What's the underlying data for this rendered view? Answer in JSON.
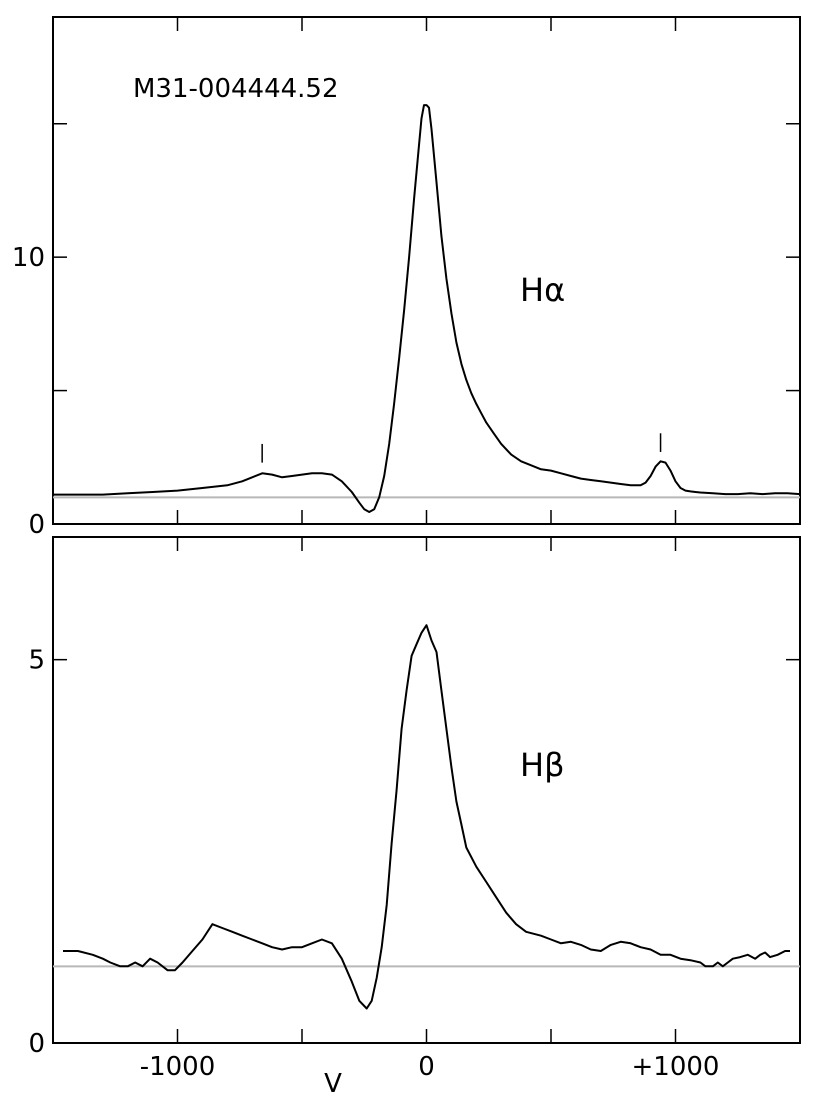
{
  "chart_data": [
    {
      "type": "line",
      "panel": "top",
      "annotation": "M31-004444.52",
      "line_label": "Hα",
      "xlim": [
        -1500,
        1500
      ],
      "ylim": [
        0,
        19
      ],
      "xticks_major": [
        -1000,
        0,
        1000
      ],
      "xticks_minor": [
        -1500,
        -500,
        500,
        1500
      ],
      "yticks_major": [
        0,
        5,
        10,
        15
      ],
      "ytick_labels": [
        {
          "value": 0,
          "text": "0"
        },
        {
          "value": 10,
          "text": "10"
        }
      ],
      "baseline": 1,
      "line_markers": [
        {
          "x": -660,
          "y0": 2.3,
          "y1": 3.0
        },
        {
          "x": 940,
          "y0": 2.7,
          "y1": 3.4
        }
      ],
      "x": [
        -1500,
        -1400,
        -1300,
        -1200,
        -1100,
        -1000,
        -900,
        -800,
        -740,
        -700,
        -660,
        -620,
        -580,
        -540,
        -500,
        -460,
        -420,
        -380,
        -340,
        -300,
        -270,
        -250,
        -230,
        -210,
        -190,
        -170,
        -150,
        -130,
        -110,
        -90,
        -70,
        -50,
        -30,
        -20,
        -10,
        0,
        10,
        20,
        40,
        60,
        80,
        100,
        120,
        140,
        160,
        180,
        200,
        220,
        240,
        270,
        300,
        340,
        380,
        420,
        460,
        500,
        540,
        580,
        620,
        660,
        700,
        740,
        780,
        820,
        860,
        880,
        900,
        920,
        940,
        960,
        980,
        1000,
        1020,
        1040,
        1060,
        1080,
        1100,
        1150,
        1200,
        1250,
        1300,
        1350,
        1400,
        1450,
        1500
      ],
      "y": [
        1.1,
        1.1,
        1.1,
        1.15,
        1.2,
        1.25,
        1.35,
        1.45,
        1.6,
        1.75,
        1.9,
        1.85,
        1.75,
        1.8,
        1.85,
        1.9,
        1.9,
        1.85,
        1.6,
        1.2,
        0.8,
        0.55,
        0.45,
        0.55,
        1.0,
        1.8,
        3.0,
        4.5,
        6.2,
        8.0,
        10.0,
        12.2,
        14.2,
        15.2,
        15.7,
        15.7,
        15.6,
        14.8,
        12.8,
        10.8,
        9.2,
        7.9,
        6.8,
        6.0,
        5.4,
        4.9,
        4.5,
        4.15,
        3.8,
        3.4,
        3.0,
        2.6,
        2.35,
        2.2,
        2.05,
        2.0,
        1.9,
        1.8,
        1.7,
        1.65,
        1.6,
        1.55,
        1.5,
        1.45,
        1.45,
        1.55,
        1.8,
        2.15,
        2.35,
        2.3,
        2.0,
        1.6,
        1.35,
        1.25,
        1.22,
        1.2,
        1.18,
        1.15,
        1.12,
        1.12,
        1.15,
        1.12,
        1.15,
        1.15,
        1.12
      ]
    },
    {
      "type": "line",
      "panel": "bottom",
      "line_label": "Hβ",
      "xlabel": "V",
      "xlim": [
        -1500,
        1500
      ],
      "ylim": [
        0,
        6.6
      ],
      "xticks_major": [
        -1000,
        0,
        1000
      ],
      "xticks_minor": [
        -1500,
        -500,
        500,
        1500
      ],
      "xtick_labels": [
        "-1000",
        "0",
        "+1000"
      ],
      "yticks_major": [
        0,
        5
      ],
      "ytick_labels": [
        {
          "value": 0,
          "text": "0"
        },
        {
          "value": 5,
          "text": "5"
        }
      ],
      "baseline": 1.0,
      "x": [
        -1460,
        -1400,
        -1340,
        -1300,
        -1270,
        -1230,
        -1200,
        -1170,
        -1140,
        -1110,
        -1080,
        -1040,
        -1010,
        -980,
        -940,
        -900,
        -860,
        -820,
        -780,
        -740,
        -700,
        -660,
        -620,
        -580,
        -540,
        -500,
        -460,
        -420,
        -380,
        -340,
        -300,
        -270,
        -240,
        -220,
        -200,
        -180,
        -160,
        -140,
        -120,
        -100,
        -80,
        -60,
        -40,
        -20,
        0,
        20,
        40,
        60,
        80,
        100,
        120,
        140,
        160,
        200,
        240,
        280,
        320,
        360,
        400,
        460,
        500,
        540,
        580,
        620,
        660,
        700,
        740,
        780,
        820,
        860,
        900,
        940,
        980,
        1020,
        1060,
        1100,
        1120,
        1150,
        1170,
        1190,
        1210,
        1230,
        1260,
        1290,
        1320,
        1340,
        1360,
        1380,
        1410,
        1440,
        1460
      ],
      "y": [
        1.2,
        1.2,
        1.15,
        1.1,
        1.05,
        1.0,
        1.0,
        1.05,
        1.0,
        1.1,
        1.05,
        0.95,
        0.95,
        1.05,
        1.2,
        1.35,
        1.55,
        1.5,
        1.45,
        1.4,
        1.35,
        1.3,
        1.25,
        1.22,
        1.25,
        1.25,
        1.3,
        1.35,
        1.3,
        1.1,
        0.8,
        0.55,
        0.45,
        0.55,
        0.85,
        1.25,
        1.8,
        2.6,
        3.3,
        4.1,
        4.6,
        5.05,
        5.2,
        5.35,
        5.45,
        5.25,
        5.1,
        4.6,
        4.1,
        3.6,
        3.15,
        2.85,
        2.55,
        2.3,
        2.1,
        1.9,
        1.7,
        1.55,
        1.45,
        1.4,
        1.35,
        1.3,
        1.32,
        1.28,
        1.22,
        1.2,
        1.28,
        1.32,
        1.3,
        1.25,
        1.22,
        1.15,
        1.15,
        1.1,
        1.08,
        1.05,
        1.0,
        1.0,
        1.05,
        1.0,
        1.05,
        1.1,
        1.12,
        1.15,
        1.1,
        1.15,
        1.18,
        1.12,
        1.15,
        1.2,
        1.2
      ]
    }
  ]
}
